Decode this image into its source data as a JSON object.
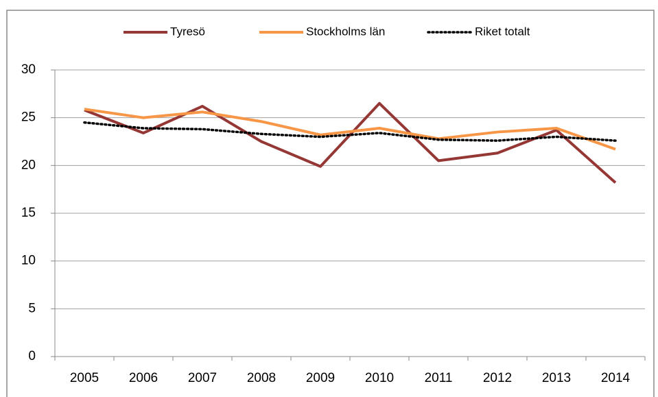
{
  "chart_data": {
    "type": "line",
    "categories": [
      "2005",
      "2006",
      "2007",
      "2008",
      "2009",
      "2010",
      "2011",
      "2012",
      "2013",
      "2014"
    ],
    "series": [
      {
        "name": "Tyresö",
        "color": "#953735",
        "dash": "solid",
        "values": [
          25.8,
          23.4,
          26.2,
          22.5,
          19.9,
          26.5,
          20.5,
          21.3,
          23.7,
          18.2
        ]
      },
      {
        "name": "Stockholms län",
        "color": "#f79646",
        "dash": "solid",
        "values": [
          25.9,
          25.0,
          25.6,
          24.6,
          23.2,
          23.9,
          22.8,
          23.5,
          23.9,
          21.7
        ]
      },
      {
        "name": "Riket totalt",
        "color": "#000000",
        "dash": "dotted",
        "values": [
          24.5,
          23.9,
          23.8,
          23.3,
          23.0,
          23.4,
          22.7,
          22.6,
          23.0,
          22.6
        ]
      }
    ],
    "ylim": [
      0,
      30
    ],
    "yticks": [
      0,
      5,
      10,
      15,
      20,
      25,
      30
    ],
    "grid": true,
    "legend": "top"
  }
}
